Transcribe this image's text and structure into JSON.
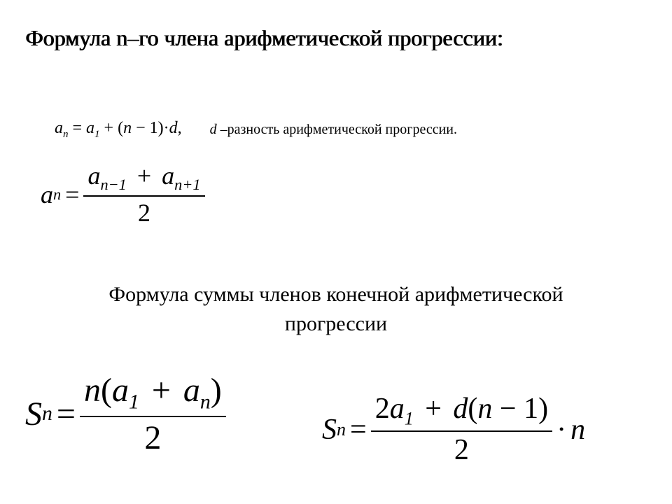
{
  "colors": {
    "text": "#000000",
    "background": "#ffffff"
  },
  "heading1": "Формула n–го члена арифметической прогрессии:",
  "nth": {
    "lhs_a": "a",
    "lhs_sub": "n",
    "eq": " = ",
    "rhs_a": "a",
    "rhs_sub": "1",
    "plus": " + (",
    "n": "n",
    "minus1": " − 1)·",
    "d": "d",
    "comma": ","
  },
  "d_note": {
    "d": "d",
    "text": " –разность арифметической прогрессии."
  },
  "avg": {
    "lhs_a": "a",
    "lhs_sub": "n",
    "eq": "=",
    "num_a1": "a",
    "num_sub1": "n−1",
    "num_plus": " + ",
    "num_a2": "a",
    "num_sub2": "n+1",
    "den": "2"
  },
  "heading2_l1": "Формула суммы членов конечной арифметической",
  "heading2_l2": "прогрессии",
  "sum1": {
    "S": "S",
    "S_sub": "n",
    "eq": "=",
    "num_n": "n",
    "num_open": "(",
    "num_a1": "a",
    "num_a1_sub": "1",
    "num_plus": " + ",
    "num_an": "a",
    "num_an_sub": "n",
    "num_close": ")",
    "den": "2"
  },
  "sum2": {
    "S": "S",
    "S_sub": "n",
    "eq": "=",
    "num_2a": "2",
    "num_a": "a",
    "num_a_sub": "1",
    "num_plus": " + ",
    "num_d": "d",
    "num_open": "(",
    "num_n": "n",
    "num_minus1": " − 1",
    "num_close": ")",
    "den": "2",
    "dot": "·",
    "tail_n": "n"
  }
}
